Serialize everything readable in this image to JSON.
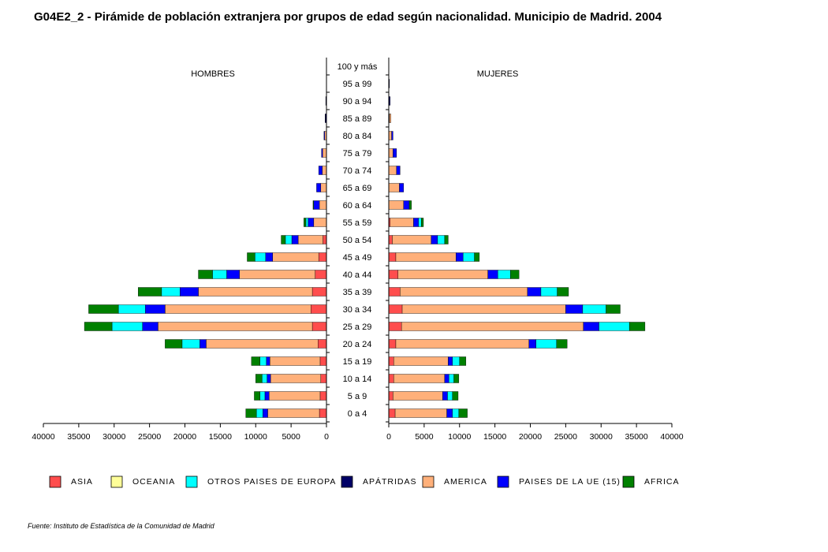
{
  "chart_data": {
    "type": "bar",
    "title": "G04E2_2  - Pirámide de población extranjera por grupos de edad según nacionalidad.  Municipio de Madrid.  2004",
    "left_label": "HOMBRES",
    "right_label": "MUJERES",
    "source": "Fuente: Instituto de Estadística de la Comunidad de Madrid",
    "xlim": [
      0,
      40000
    ],
    "x_ticks": [
      40000,
      35000,
      30000,
      25000,
      20000,
      15000,
      10000,
      5000,
      0
    ],
    "right_ticks": [
      0,
      5000,
      10000,
      15000,
      20000,
      25000,
      30000,
      35000,
      40000
    ],
    "categories": [
      "100 y más",
      "95 a 99",
      "90 a 94",
      "85 a 89",
      "80 a 84",
      "75 a 79",
      "70 a 74",
      "65 a 69",
      "60 a 64",
      "55 a 59",
      "50 a 54",
      "45 a 49",
      "40 a  44",
      "35 a 39",
      "30 a 34",
      "25 a 29",
      "20 a 24",
      "15 a 19",
      "10 a 14",
      "5 a 9",
      "0 a 4"
    ],
    "series_colors": {
      "ASIA": "#ff4d4d",
      "OCEANIA": "#ffff99",
      "OTROS PAISES DE EUROPA": "#00ffff",
      "APÁTRIDAS": "#000066",
      "AMERICA": "#ffb07a",
      "PAISES DE LA UE (15)": "#0000ff",
      "AFRICA": "#008000"
    },
    "legend": [
      {
        "name": "ASIA",
        "color": "#ff4d4d"
      },
      {
        "name": "OCEANIA",
        "color": "#ffff99"
      },
      {
        "name": "OTROS PAISES DE EUROPA",
        "color": "#00ffff"
      },
      {
        "name": "APÁTRIDAS",
        "color": "#000066"
      },
      {
        "name": "AMERICA",
        "color": "#ffb07a"
      },
      {
        "name": "PAISES DE LA UE (15)",
        "color": "#0000ff"
      },
      {
        "name": "AFRICA",
        "color": "#008000"
      }
    ],
    "segment_order": [
      "ASIA",
      "OCEANIA",
      "APÁTRIDAS",
      "AMERICA",
      "PAISES DE LA UE (15)",
      "OTROS PAISES DE EUROPA",
      "AFRICA"
    ],
    "men": {
      "ASIA": [
        0,
        0,
        0,
        0,
        0,
        0,
        0,
        0,
        0,
        0,
        500,
        1100,
        1600,
        2000,
        2200,
        2000,
        1200,
        900,
        800,
        900,
        1000
      ],
      "OCEANIA": [
        0,
        0,
        0,
        0,
        0,
        0,
        0,
        0,
        0,
        0,
        0,
        0,
        0,
        0,
        0,
        0,
        0,
        0,
        0,
        0,
        0
      ],
      "APÁTRIDAS": [
        0,
        0,
        100,
        150,
        0,
        0,
        0,
        0,
        0,
        0,
        0,
        0,
        0,
        0,
        0,
        0,
        0,
        0,
        0,
        0,
        0
      ],
      "AMERICA": [
        0,
        0,
        0,
        0,
        250,
        550,
        600,
        800,
        1000,
        1800,
        3500,
        6500,
        10700,
        16100,
        20600,
        21800,
        15800,
        7100,
        7100,
        7200,
        7300
      ],
      "PAISES DE LA UE (15)": [
        0,
        0,
        0,
        50,
        100,
        150,
        500,
        600,
        800,
        800,
        900,
        1000,
        1800,
        2600,
        2800,
        2200,
        900,
        500,
        500,
        600,
        700
      ],
      "OTROS PAISES DE EUROPA": [
        0,
        0,
        0,
        0,
        0,
        0,
        0,
        0,
        0,
        300,
        900,
        1500,
        2000,
        2600,
        3800,
        4300,
        2500,
        900,
        700,
        700,
        900
      ],
      "AFRICA": [
        0,
        0,
        0,
        0,
        0,
        0,
        0,
        0,
        100,
        300,
        600,
        1100,
        2000,
        3300,
        4200,
        3900,
        2400,
        1200,
        900,
        800,
        1500
      ]
    },
    "women": {
      "ASIA": [
        0,
        0,
        0,
        0,
        0,
        0,
        0,
        0,
        0,
        200,
        500,
        1000,
        1300,
        1600,
        1900,
        1800,
        1000,
        700,
        700,
        600,
        900
      ],
      "OCEANIA": [
        0,
        0,
        0,
        0,
        0,
        0,
        0,
        0,
        0,
        0,
        0,
        0,
        0,
        0,
        0,
        0,
        0,
        0,
        0,
        0,
        0
      ],
      "APÁTRIDAS": [
        0,
        100,
        200,
        100,
        0,
        0,
        0,
        0,
        0,
        0,
        0,
        0,
        0,
        0,
        0,
        0,
        0,
        0,
        0,
        0,
        0
      ],
      "AMERICA": [
        0,
        0,
        0,
        200,
        400,
        600,
        1100,
        1500,
        2100,
        3300,
        5500,
        8500,
        12700,
        18000,
        23100,
        25700,
        18800,
        7700,
        7200,
        7000,
        7300
      ],
      "PAISES DE LA UE (15)": [
        0,
        0,
        0,
        0,
        200,
        500,
        500,
        600,
        800,
        700,
        900,
        1000,
        1400,
        1900,
        2400,
        2200,
        1000,
        600,
        600,
        700,
        800
      ],
      "OTROS PAISES DE EUROPA": [
        0,
        0,
        0,
        0,
        0,
        0,
        0,
        0,
        0,
        400,
        1000,
        1600,
        1800,
        2300,
        3300,
        4300,
        2900,
        1000,
        700,
        700,
        900
      ],
      "AFRICA": [
        0,
        0,
        0,
        0,
        0,
        0,
        0,
        0,
        300,
        300,
        500,
        700,
        1200,
        1600,
        2000,
        2200,
        1500,
        900,
        700,
        800,
        1200
      ]
    },
    "grid": false,
    "legend_position": "bottom"
  }
}
